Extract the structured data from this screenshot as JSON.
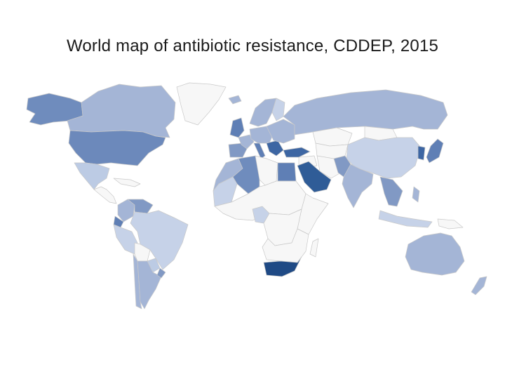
{
  "title": "World map of antibiotic resistance, CDDEP, 2015",
  "legend": {
    "no_data": "#f7f7f7",
    "scale": [
      "#c6d2e8",
      "#a4b5d6",
      "#8199c4",
      "#5f7fb5",
      "#3d66a3",
      "#2b5793",
      "#1f4a85"
    ]
  },
  "countries": [
    {
      "id": "alaska",
      "fill": "#6f8cbd"
    },
    {
      "id": "canada",
      "fill": "#a4b5d6"
    },
    {
      "id": "greenland",
      "fill": "#f7f7f7"
    },
    {
      "id": "usa",
      "fill": "#6c89bb"
    },
    {
      "id": "mexico",
      "fill": "#bccbe4"
    },
    {
      "id": "central-america",
      "fill": "#f7f7f7"
    },
    {
      "id": "caribbean",
      "fill": "#f7f7f7"
    },
    {
      "id": "colombia",
      "fill": "#a4b5d6"
    },
    {
      "id": "venezuela",
      "fill": "#8199c4"
    },
    {
      "id": "ecuador",
      "fill": "#5f7fb5"
    },
    {
      "id": "peru",
      "fill": "#c6d2e8"
    },
    {
      "id": "brazil",
      "fill": "#c6d2e8"
    },
    {
      "id": "bolivia",
      "fill": "#f7f7f7"
    },
    {
      "id": "paraguay",
      "fill": "#bccbe4"
    },
    {
      "id": "chile",
      "fill": "#a4b5d6"
    },
    {
      "id": "argentina",
      "fill": "#a4b5d6"
    },
    {
      "id": "uruguay",
      "fill": "#8199c4"
    },
    {
      "id": "iceland",
      "fill": "#a4b5d6"
    },
    {
      "id": "scandinavia",
      "fill": "#a4b5d6"
    },
    {
      "id": "finland",
      "fill": "#c6d2e8"
    },
    {
      "id": "uk-ireland",
      "fill": "#5f7fb5"
    },
    {
      "id": "iberia",
      "fill": "#8199c4"
    },
    {
      "id": "france",
      "fill": "#a4b5d6"
    },
    {
      "id": "central-europe",
      "fill": "#a4b5d6"
    },
    {
      "id": "italy",
      "fill": "#5f7fb5"
    },
    {
      "id": "balkans",
      "fill": "#3d66a3"
    },
    {
      "id": "eastern-europe",
      "fill": "#a4b5d6"
    },
    {
      "id": "russia",
      "fill": "#a4b5d6"
    },
    {
      "id": "turkey",
      "fill": "#3d66a3"
    },
    {
      "id": "kazakhstan",
      "fill": "#f7f7f7"
    },
    {
      "id": "central-asia",
      "fill": "#f7f7f7"
    },
    {
      "id": "morocco",
      "fill": "#a4b5d6"
    },
    {
      "id": "algeria",
      "fill": "#6f8cbd"
    },
    {
      "id": "libya",
      "fill": "#f7f7f7"
    },
    {
      "id": "egypt",
      "fill": "#5f7fb5"
    },
    {
      "id": "west-africa",
      "fill": "#f7f7f7"
    },
    {
      "id": "mauritania",
      "fill": "#c6d2e8"
    },
    {
      "id": "nigeria",
      "fill": "#c6d2e8"
    },
    {
      "id": "central-africa",
      "fill": "#f7f7f7"
    },
    {
      "id": "east-africa",
      "fill": "#f7f7f7"
    },
    {
      "id": "southern-africa",
      "fill": "#f7f7f7"
    },
    {
      "id": "south-africa",
      "fill": "#1f4a85"
    },
    {
      "id": "madagascar",
      "fill": "#f7f7f7"
    },
    {
      "id": "saudi-arabia",
      "fill": "#2f5c97"
    },
    {
      "id": "middle-east",
      "fill": "#f7f7f7"
    },
    {
      "id": "iran",
      "fill": "#f7f7f7"
    },
    {
      "id": "pakistan",
      "fill": "#8199c4"
    },
    {
      "id": "india",
      "fill": "#a4b5d6"
    },
    {
      "id": "china",
      "fill": "#c6d2e8"
    },
    {
      "id": "mongolia",
      "fill": "#f7f7f7"
    },
    {
      "id": "korea",
      "fill": "#3d66a3"
    },
    {
      "id": "japan",
      "fill": "#5f7fb5"
    },
    {
      "id": "southeast-asia",
      "fill": "#8199c4"
    },
    {
      "id": "philippines",
      "fill": "#a4b5d6"
    },
    {
      "id": "indonesia",
      "fill": "#c6d2e8"
    },
    {
      "id": "papua",
      "fill": "#f7f7f7"
    },
    {
      "id": "australia",
      "fill": "#a4b5d6"
    },
    {
      "id": "new-zealand",
      "fill": "#a4b5d6"
    }
  ]
}
